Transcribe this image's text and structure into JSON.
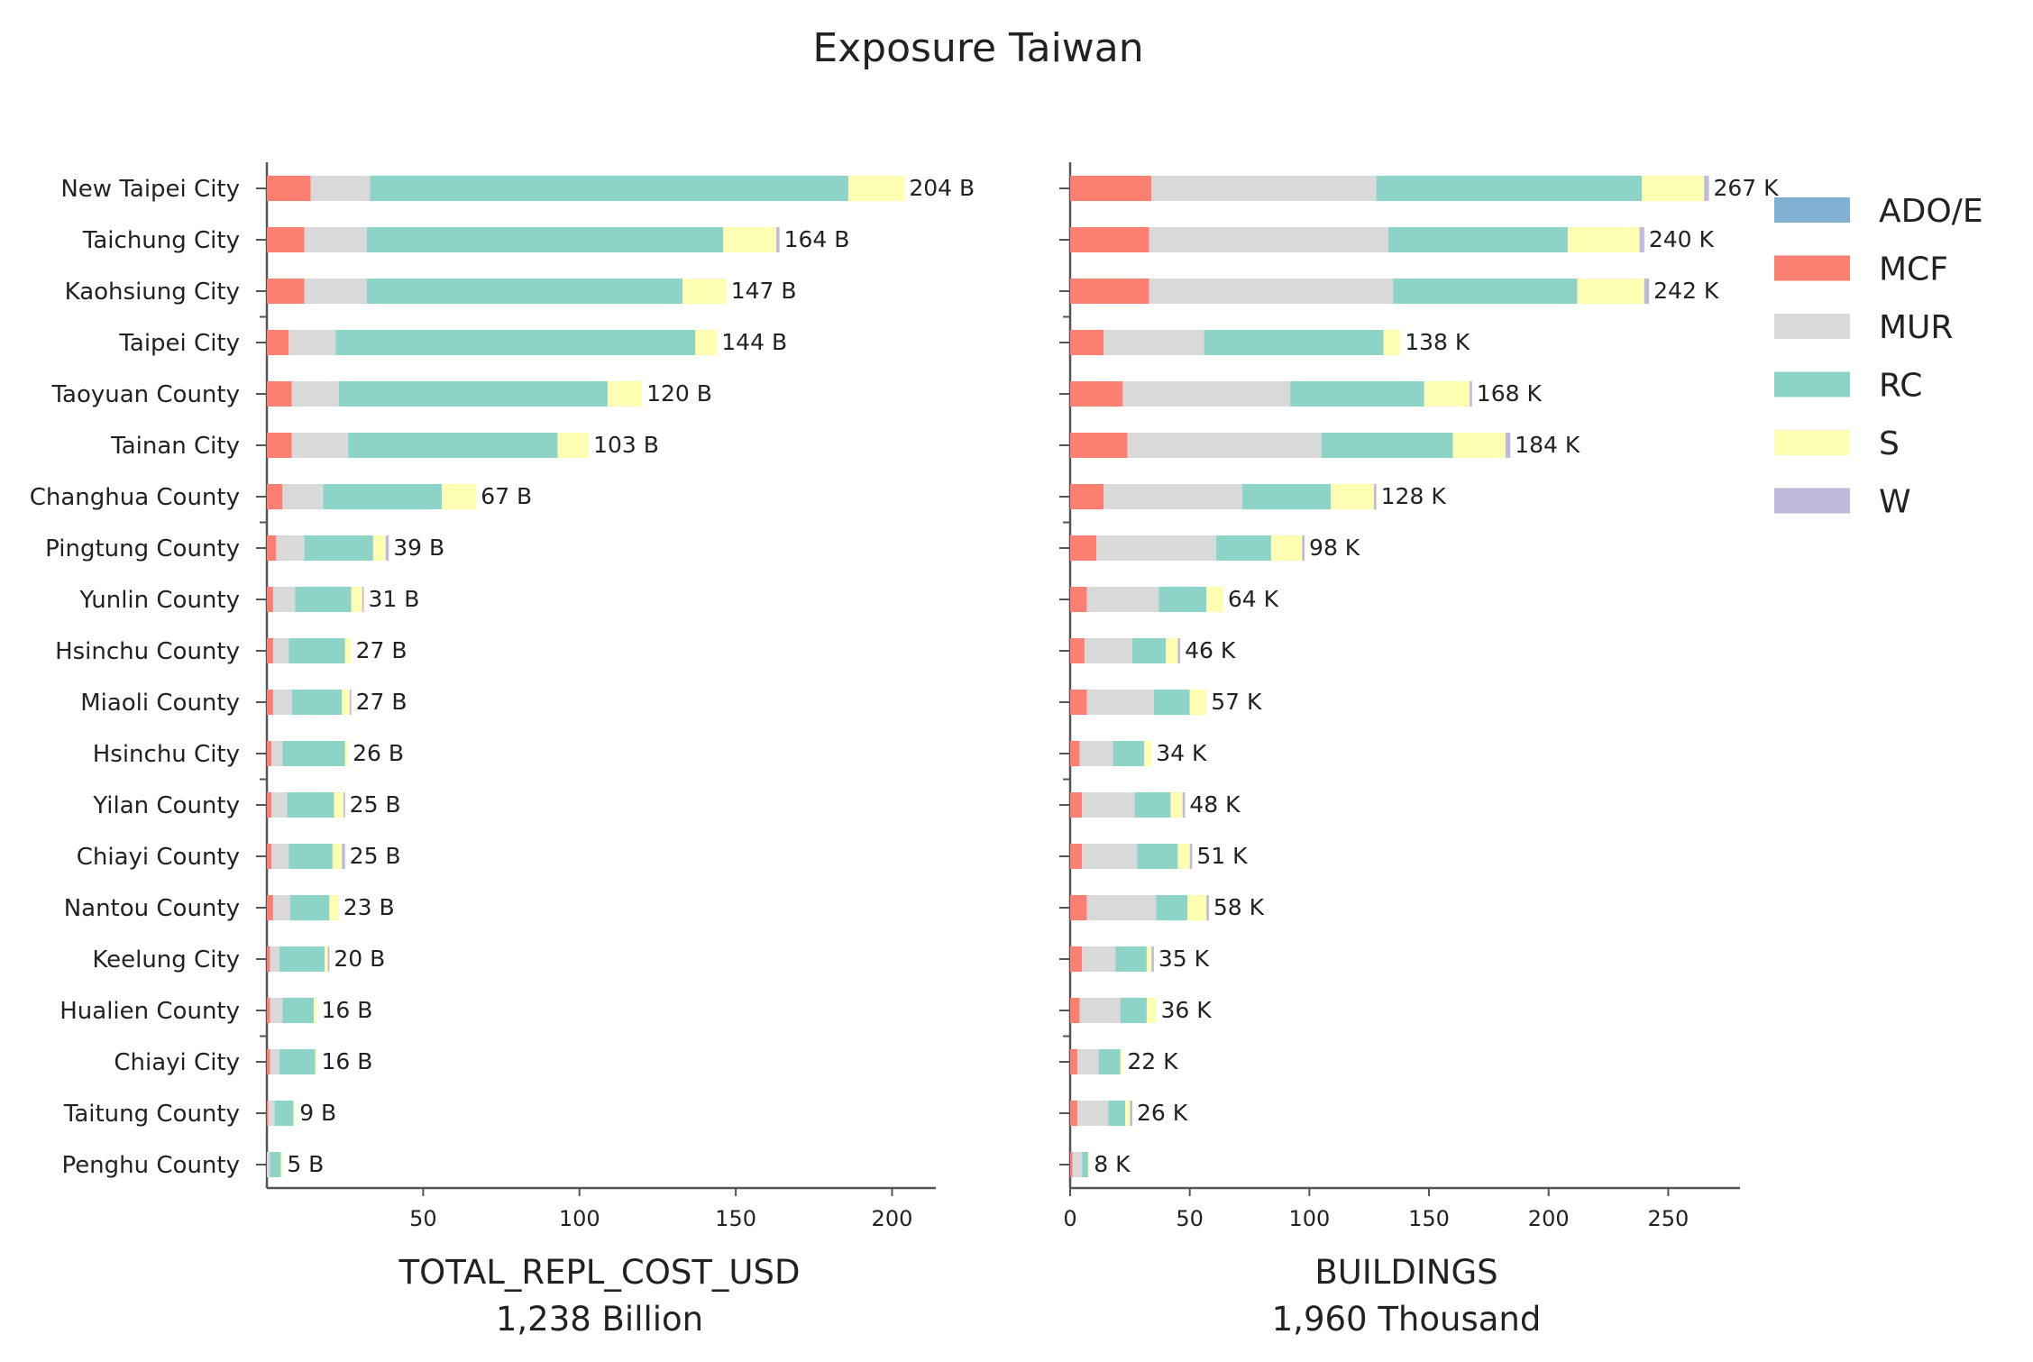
{
  "title": "Exposure Taiwan",
  "chart_data": [
    {
      "type": "bar",
      "orientation": "horizontal",
      "stacked": true,
      "xlabel": "TOTAL_REPL_COST_USD",
      "xlabel_sub": "1,238 Billion",
      "unit_suffix": "B",
      "xlim": [
        0,
        214
      ],
      "xticks": [
        50,
        100,
        150,
        200
      ],
      "categories": [
        "New Taipei City",
        "Taichung City",
        "Kaohsiung City",
        "Taipei City",
        "Taoyuan County",
        "Tainan City",
        "Changhua County",
        "Pingtung County",
        "Yunlin County",
        "Hsinchu County",
        "Miaoli County",
        "Hsinchu City",
        "Yilan County",
        "Chiayi County",
        "Nantou County",
        "Keelung City",
        "Hualien County",
        "Chiayi City",
        "Taitung County",
        "Penghu County"
      ],
      "totals": [
        204,
        164,
        147,
        144,
        120,
        103,
        67,
        39,
        31,
        27,
        27,
        26,
        25,
        25,
        23,
        20,
        16,
        16,
        9,
        5
      ],
      "series": [
        {
          "name": "ADO/E",
          "values": [
            0,
            0,
            0,
            0,
            0,
            0,
            0,
            0,
            0,
            0,
            0,
            0,
            0,
            0,
            0,
            0,
            0,
            0,
            0,
            0
          ]
        },
        {
          "name": "MCF",
          "values": [
            14,
            12,
            12,
            7,
            8,
            8,
            5,
            3,
            2,
            2,
            2,
            1.5,
            1.5,
            1.5,
            2,
            1,
            1,
            1,
            0.5,
            0
          ]
        },
        {
          "name": "MUR",
          "values": [
            19,
            20,
            20,
            15,
            15,
            18,
            13,
            9,
            7,
            5,
            6,
            3.5,
            5,
            5.5,
            5.5,
            3,
            4,
            3,
            2,
            1
          ]
        },
        {
          "name": "RC",
          "values": [
            153,
            114,
            101,
            115,
            86,
            67,
            38,
            22,
            18,
            18,
            16,
            20,
            15,
            14,
            12.5,
            14.5,
            10,
            11.5,
            6,
            3.5
          ]
        },
        {
          "name": "S",
          "values": [
            18,
            17,
            14,
            7,
            11,
            10,
            11,
            4,
            3.5,
            2,
            2.5,
            1,
            3,
            3,
            3,
            1,
            1,
            0.5,
            0.5,
            0.5
          ]
        },
        {
          "name": "W",
          "values": [
            0,
            1,
            0,
            0,
            0,
            0,
            0,
            1,
            0.5,
            0,
            0.5,
            0,
            0.5,
            1,
            0,
            0.5,
            0,
            0,
            0,
            0
          ]
        }
      ]
    },
    {
      "type": "bar",
      "orientation": "horizontal",
      "stacked": true,
      "xlabel": "BUILDINGS",
      "xlabel_sub": "1,960 Thousand",
      "unit_suffix": "K",
      "xlim": [
        0,
        280
      ],
      "xticks": [
        0,
        50,
        100,
        150,
        200,
        250
      ],
      "categories": [
        "New Taipei City",
        "Taichung City",
        "Kaohsiung City",
        "Taipei City",
        "Taoyuan County",
        "Tainan City",
        "Changhua County",
        "Pingtung County",
        "Yunlin County",
        "Hsinchu County",
        "Miaoli County",
        "Hsinchu City",
        "Yilan County",
        "Chiayi County",
        "Nantou County",
        "Keelung City",
        "Hualien County",
        "Chiayi City",
        "Taitung County",
        "Penghu County"
      ],
      "totals": [
        267,
        240,
        242,
        138,
        168,
        184,
        128,
        98,
        64,
        46,
        57,
        34,
        48,
        51,
        58,
        35,
        36,
        22,
        26,
        8
      ],
      "series": [
        {
          "name": "ADO/E",
          "values": [
            0,
            0,
            0,
            0,
            0,
            0,
            0,
            0,
            0,
            0,
            0,
            0,
            0,
            0,
            0,
            0,
            0,
            0,
            0,
            0
          ]
        },
        {
          "name": "MCF",
          "values": [
            34,
            33,
            33,
            14,
            22,
            24,
            14,
            11,
            7,
            6,
            7,
            4,
            5,
            5,
            7,
            5,
            4,
            3,
            3,
            1
          ]
        },
        {
          "name": "MUR",
          "values": [
            94,
            100,
            102,
            42,
            70,
            81,
            58,
            50,
            30,
            20,
            28,
            14,
            22,
            23,
            29,
            14,
            17,
            9,
            13,
            4
          ]
        },
        {
          "name": "RC",
          "values": [
            111,
            75,
            77,
            75,
            56,
            55,
            37,
            23,
            20,
            14,
            15,
            13,
            15,
            17,
            13,
            13,
            11,
            9,
            7,
            2.5
          ]
        },
        {
          "name": "S",
          "values": [
            26,
            30,
            28,
            7,
            19,
            22,
            18,
            13,
            7,
            5,
            7,
            3,
            5,
            5,
            8,
            2,
            4,
            1,
            2,
            0.5
          ]
        },
        {
          "name": "W",
          "values": [
            2,
            2,
            2,
            0,
            1,
            2,
            1,
            1,
            0,
            1,
            0,
            0,
            1,
            1,
            1,
            1,
            0,
            0,
            1,
            0
          ]
        }
      ]
    }
  ],
  "legend": [
    {
      "name": "ADO/E",
      "color": "#80b1d3"
    },
    {
      "name": "MCF",
      "color": "#fb8072"
    },
    {
      "name": "MUR",
      "color": "#d9d9d9"
    },
    {
      "name": "RC",
      "color": "#8dd3c7"
    },
    {
      "name": "S",
      "color": "#ffffb3"
    },
    {
      "name": "W",
      "color": "#bebada"
    }
  ],
  "legend_placement": "right"
}
